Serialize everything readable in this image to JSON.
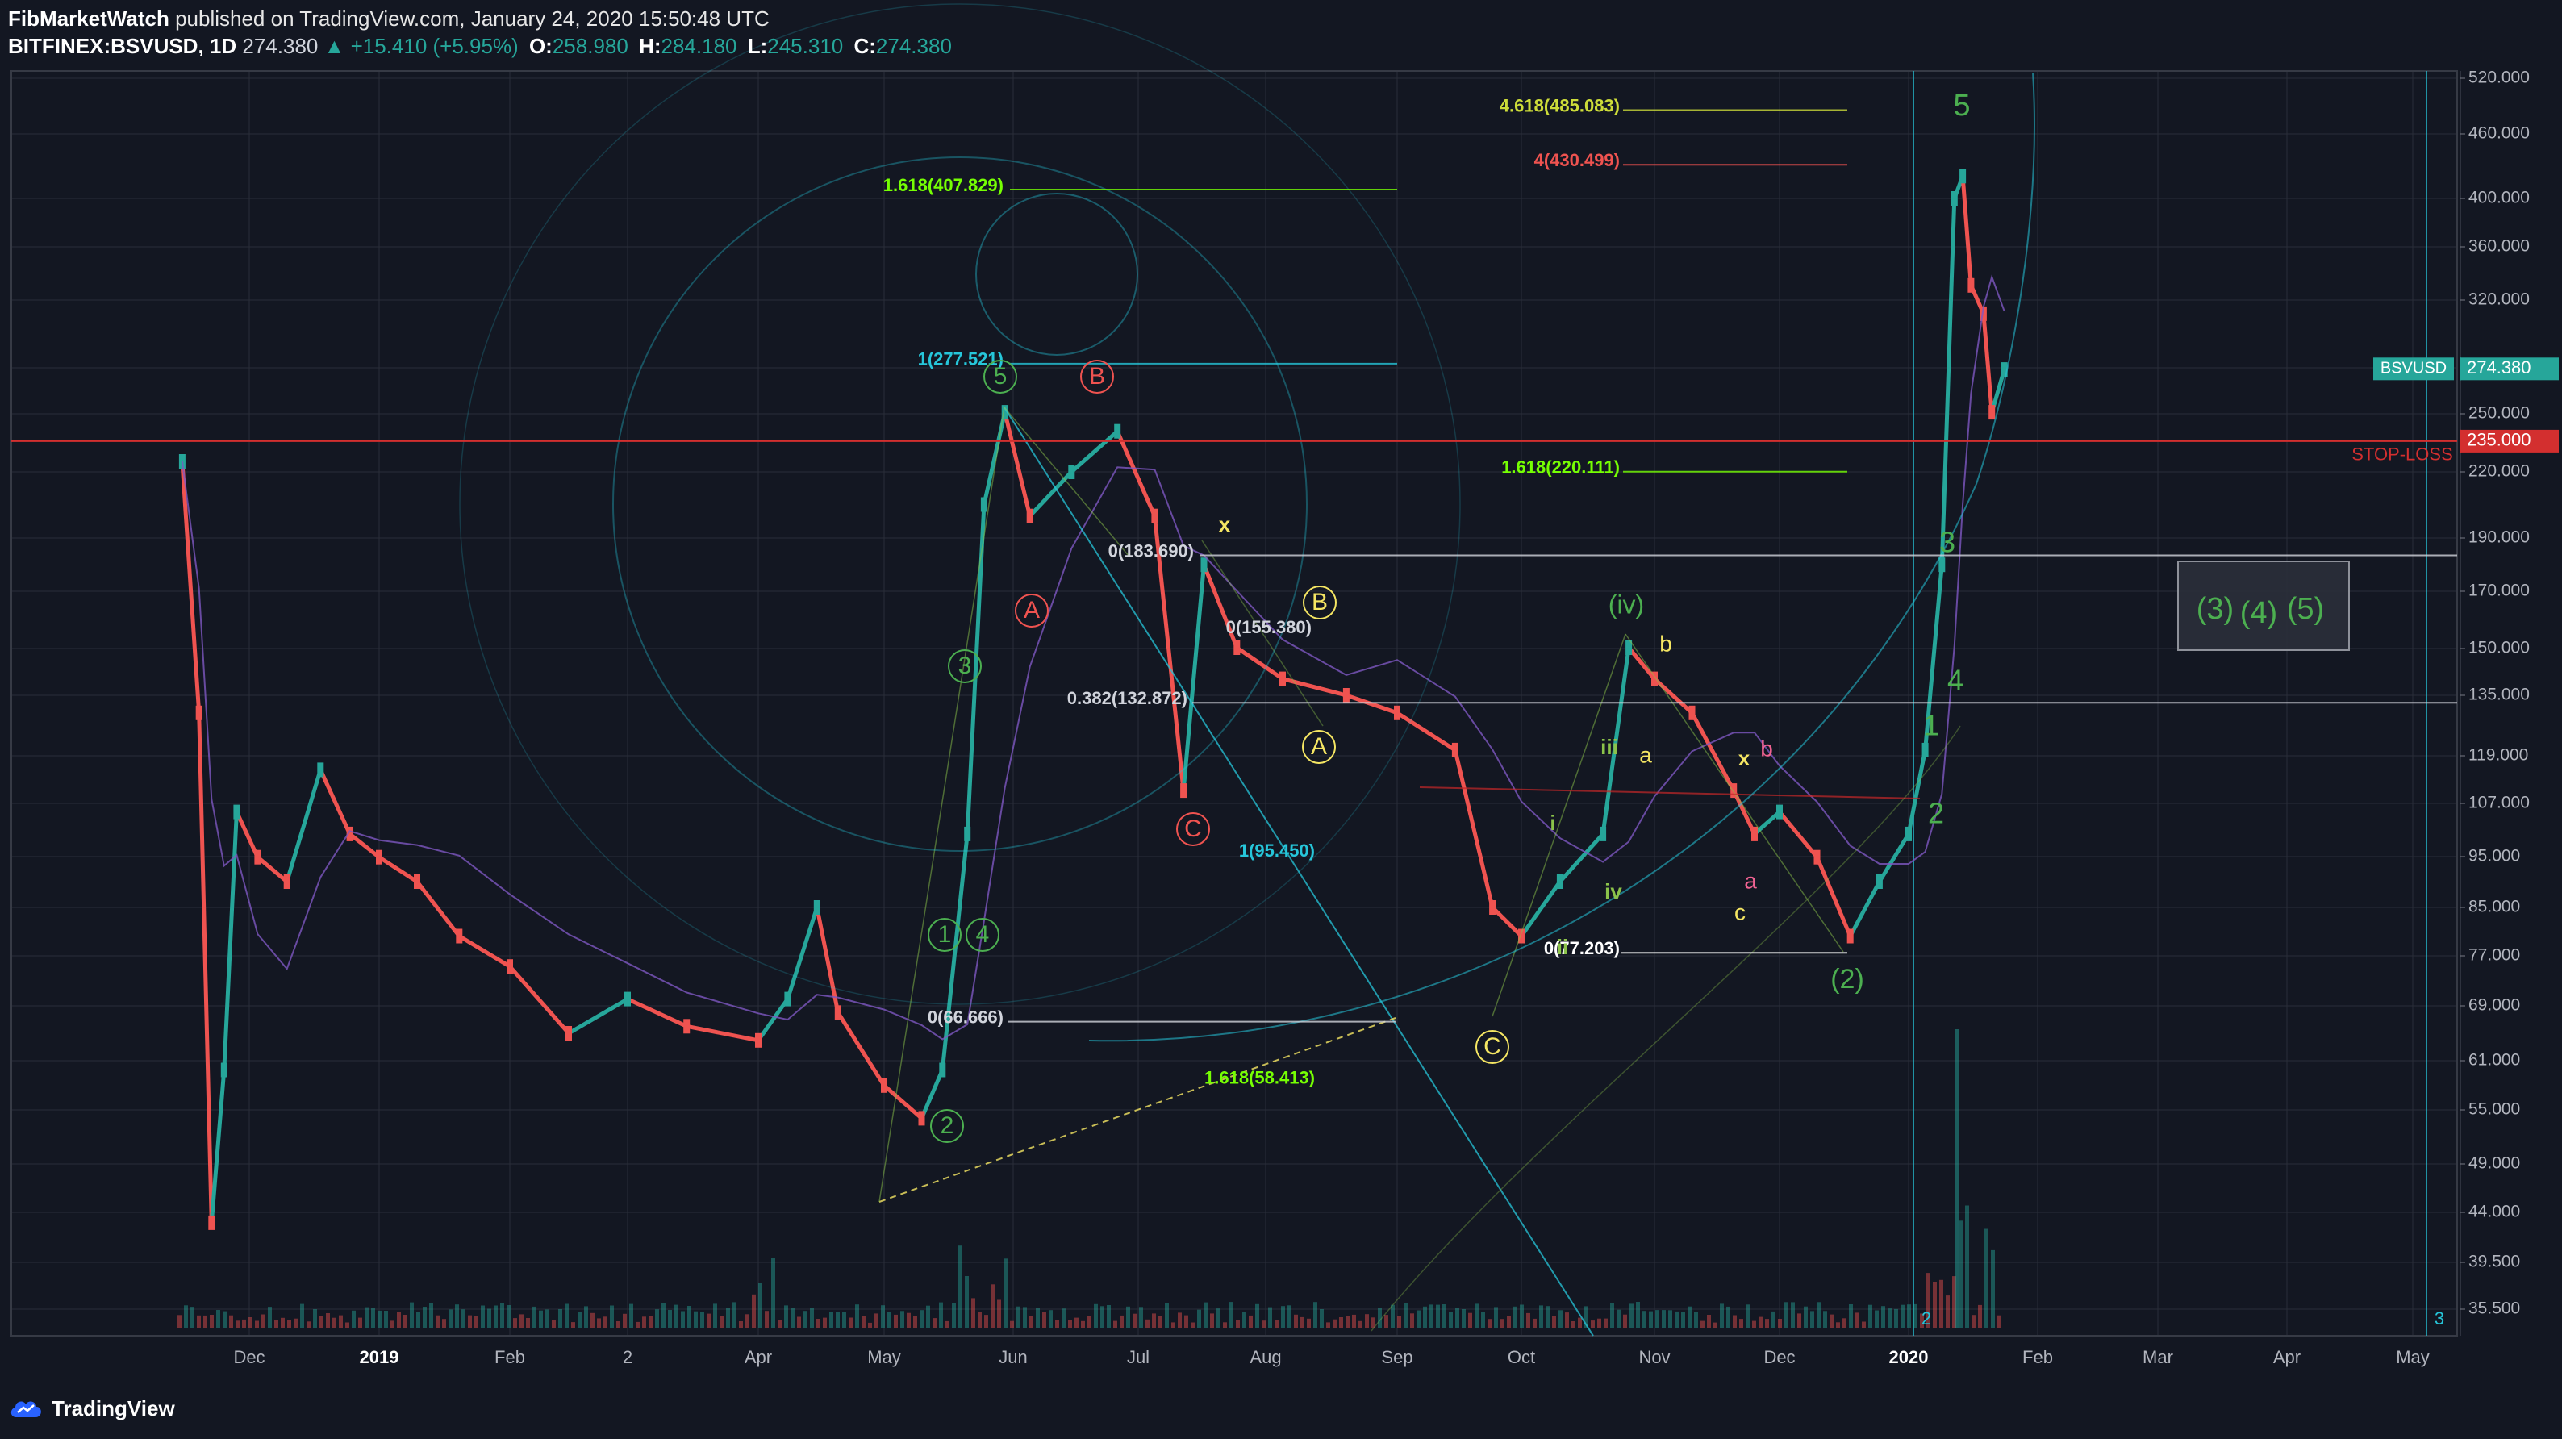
{
  "header": {
    "author": "FibMarketWatch",
    "published": "published on TradingView.com, January 24, 2020 15:50:48 UTC",
    "symbol": "BITFINEX:BSVUSD, 1D",
    "last": "274.380",
    "change": "▲ +15.410 (+5.95%)",
    "o_label": "O:",
    "o_value": "258.980",
    "h_label": "H:",
    "h_value": "284.180",
    "l_label": "L:",
    "l_value": "245.310",
    "c_label": "C:",
    "c_value": "274.380"
  },
  "footer": {
    "brand": "TradingView"
  },
  "colors": {
    "background": "#131722",
    "grid": "#2a2e39",
    "up": "#26a69a",
    "down": "#ef5350",
    "green_label": "#4caf50",
    "red_label": "#ef5350",
    "yellow_label": "#f5e663",
    "pink_label": "#f06292",
    "cyan": "#26c6da",
    "stoploss": "#d32f2f"
  },
  "chart_data": {
    "type": "line",
    "title": "",
    "scale": "log",
    "ylim": [
      33,
      540
    ],
    "price_ticks": [
      "520.000",
      "460.000",
      "400.000",
      "360.000",
      "320.000",
      "275.000",
      "250.000",
      "220.000",
      "190.000",
      "170.000",
      "150.000",
      "135.000",
      "119.000",
      "107.000",
      "95.000",
      "85.000",
      "77.000",
      "69.000",
      "61.000",
      "55.000",
      "49.000",
      "44.000",
      "39.500",
      "35.500"
    ],
    "time_ticks": [
      "Dec",
      "2019",
      "Feb",
      "2",
      "Apr",
      "May",
      "Jun",
      "Jul",
      "Aug",
      "Sep",
      "Oct",
      "Nov",
      "Dec",
      "2020",
      "Feb",
      "Mar",
      "Apr",
      "May"
    ],
    "series": [
      {
        "x": [
          "2018-11-15",
          "2018-11-19",
          "2018-11-22",
          "2018-11-25",
          "2018-11-28",
          "2018-12-03",
          "2018-12-10",
          "2018-12-18",
          "2018-12-25",
          "2019-01-01",
          "2019-01-10",
          "2019-01-20",
          "2019-02-01",
          "2019-02-15",
          "2019-03-01",
          "2019-03-15",
          "2019-04-01",
          "2019-04-08",
          "2019-04-15",
          "2019-04-20",
          "2019-05-01",
          "2019-05-10",
          "2019-05-15",
          "2019-05-21",
          "2019-05-25",
          "2019-05-30",
          "2019-06-05",
          "2019-06-15",
          "2019-06-26",
          "2019-07-05",
          "2019-07-12",
          "2019-07-17",
          "2019-07-25",
          "2019-08-05",
          "2019-08-20",
          "2019-09-01",
          "2019-09-15",
          "2019-09-24",
          "2019-10-01",
          "2019-10-10",
          "2019-10-20",
          "2019-10-26",
          "2019-11-01",
          "2019-11-10",
          "2019-11-20",
          "2019-11-25",
          "2019-12-01",
          "2019-12-10",
          "2019-12-18",
          "2019-12-25",
          "2020-01-01",
          "2020-01-05",
          "2020-01-09",
          "2020-01-12",
          "2020-01-14",
          "2020-01-16",
          "2020-01-19",
          "2020-01-21",
          "2020-01-24"
        ],
        "values": [
          225,
          130,
          43,
          60,
          105,
          95,
          90,
          115,
          100,
          95,
          90,
          80,
          75,
          65,
          70,
          66,
          64,
          70,
          85,
          68,
          58,
          54,
          60,
          100,
          205,
          250,
          200,
          220,
          240,
          200,
          110,
          180,
          150,
          140,
          135,
          130,
          120,
          85,
          80,
          90,
          100,
          150,
          140,
          130,
          110,
          100,
          105,
          95,
          80,
          90,
          100,
          120,
          180,
          400,
          420,
          330,
          310,
          250,
          274
        ]
      }
    ],
    "fib_levels": [
      {
        "label": "4.618(485.083)",
        "value": 485.083
      },
      {
        "label": "4(430.499)",
        "value": 430.499
      },
      {
        "label": "1.618(407.829)",
        "value": 407.829
      },
      {
        "label": "1(277.521)",
        "value": 277.521
      },
      {
        "label": "1.618(220.111)",
        "value": 220.111
      },
      {
        "label": "0(183.690)",
        "value": 183.69
      },
      {
        "label": "0(155.380)",
        "value": 155.38
      },
      {
        "label": "0.382(132.872)",
        "value": 132.872
      },
      {
        "label": "1(95.450)",
        "value": 95.45
      },
      {
        "label": "0(77.203)",
        "value": 77.203
      },
      {
        "label": "0(66.666)",
        "value": 66.666
      },
      {
        "label": "1.618(58.413)",
        "value": 58.413
      }
    ],
    "horizontal_lines": [
      {
        "name": "STOP-LOSS",
        "value": 235.0,
        "label": "235.000"
      }
    ],
    "last_price": {
      "symbol": "BSVUSD",
      "value": 274.38,
      "label": "274.380"
    },
    "wave_labels": {
      "green": [
        "5",
        "3",
        "1",
        "4",
        "2",
        "(iv)",
        "iii",
        "iv",
        "i",
        "ii",
        "(2)",
        "5",
        "3",
        "4",
        "1",
        "2",
        "(3)",
        "(4)",
        "(5)"
      ],
      "red": [
        "B",
        "A",
        "C"
      ],
      "yellow": [
        "x",
        "B",
        "A",
        "C",
        "b",
        "a",
        "c",
        "x"
      ],
      "pink": [
        "b",
        "a"
      ]
    },
    "bottom_markers": [
      "2",
      "3"
    ]
  }
}
